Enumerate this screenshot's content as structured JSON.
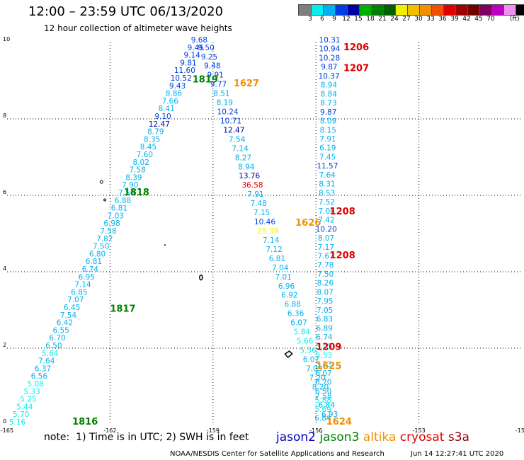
{
  "header": {
    "title": "12:00 – 23:59 UTC 06/13/2020",
    "subtitle": "12 hour collection of altimeter wave heights"
  },
  "colorbar": {
    "colors": [
      "#7f7f7f",
      "#00f0f0",
      "#00b0f0",
      "#0040e0",
      "#0000a0",
      "#00b000",
      "#008000",
      "#006000",
      "#f0f000",
      "#f0c000",
      "#f09000",
      "#f05000",
      "#e00000",
      "#a00000",
      "#700000",
      "#800060",
      "#c000c0",
      "#f090f0",
      "#000000"
    ],
    "labels": [
      "3",
      "6",
      "9",
      "12",
      "15",
      "18",
      "21",
      "24",
      "27",
      "30",
      "33",
      "36",
      "39",
      "42",
      "45",
      "70"
    ],
    "unit": "(ft)"
  },
  "axes": {
    "y_ticks": [
      "10",
      "8",
      "6",
      "4",
      "2",
      "0"
    ],
    "x_ticks": [
      "-165",
      "-162",
      "-159",
      "-156",
      "-153",
      "-150"
    ]
  },
  "tracks": [
    {
      "name": "track-1816",
      "label": "1816",
      "sat": "jason3",
      "label_pos": [
        -163.1,
        0.0
      ],
      "values": [
        "5.16",
        "5.70",
        "5.44",
        "5.25",
        "5.33",
        "5.08",
        "6.56",
        "6.37",
        "7.64",
        "5.64",
        "6.50",
        "6.70",
        "6.55",
        "6.42",
        "7.54",
        "6.45",
        "7.07",
        "6.85",
        "7.14",
        "6.95",
        "6.74",
        "6.81",
        "6.80",
        "7.50",
        "7.82",
        "7.58",
        "6.98",
        "7.03",
        "6.81",
        "6.88",
        "7.56",
        "7.90",
        "8.39",
        "7.58",
        "8.02",
        "7.60",
        "8.45",
        "8.35",
        "8.79",
        "12.47",
        "9.10",
        "8.41",
        "7.66",
        "8.86",
        "9.43",
        "10.52",
        "11.60",
        "9.81",
        "9.14",
        "9.45",
        "9.68"
      ],
      "from": [
        -164.7,
        0.0
      ],
      "to": [
        -159.4,
        10.0
      ]
    },
    {
      "name": "track-1627",
      "label": "1627",
      "sat": "altika",
      "label_pos": [
        -158.1,
        8.9
      ],
      "values": [
        "9.50",
        "9.25",
        "9.48",
        "9.91",
        "9.77",
        "8.51",
        "8.19",
        "10.24",
        "10.71",
        "12.47",
        "7.54",
        "7.14",
        "8.27",
        "8.94",
        "13.76",
        "36.58",
        "7.91",
        "7.48",
        "7.15",
        "10.46",
        "25.39",
        "7.14",
        "7.12",
        "6.81",
        "7.04",
        "7.01",
        "6.96",
        "6.92",
        "6.88",
        "6.36",
        "6.07",
        "5.84",
        "5.66",
        "5.56",
        "6.07",
        "7.09",
        "7.20",
        "8.20",
        "7.58",
        "6.84",
        "6.93"
      ],
      "from": [
        -159.2,
        9.8
      ],
      "to": [
        -155.6,
        0.2
      ]
    },
    {
      "name": "track-1206",
      "label": "1206",
      "sat": "cryosat",
      "label_pos": [
        -155.2,
        9.8
      ],
      "values": [
        "10.31",
        "10.94",
        "10.28",
        "9.87",
        "10.37",
        "8.94",
        "8.84",
        "8.73",
        "9.87",
        "8.09",
        "8.15",
        "7.91",
        "6.19",
        "7.45",
        "11.57",
        "7.64",
        "8.31",
        "8.53",
        "7.52",
        "7.06",
        "7.42",
        "10.20",
        "8.07",
        "7.17",
        "7.67",
        "7.78",
        "7.50",
        "8.26",
        "8.07",
        "7.95",
        "7.05",
        "6.83",
        "6.89",
        "6.74",
        "5.45",
        "5.53",
        "5.53",
        "6.07",
        "6.70",
        "6.50",
        "5.88",
        "5.69",
        "6.84"
      ],
      "from": [
        -155.6,
        10.0
      ],
      "to": [
        -155.8,
        0.1
      ]
    }
  ],
  "time_labels": [
    {
      "text": "1206",
      "color": "#e00000",
      "at": [
        -155.2,
        9.8
      ]
    },
    {
      "text": "1207",
      "color": "#e00000",
      "at": [
        -155.2,
        9.25
      ]
    },
    {
      "text": "1819",
      "color": "#008000",
      "at": [
        -159.6,
        8.95
      ]
    },
    {
      "text": "1627",
      "color": "#f09000",
      "at": [
        -158.4,
        8.85
      ]
    },
    {
      "text": "1818",
      "color": "#008000",
      "at": [
        -161.6,
        6.0
      ]
    },
    {
      "text": "1208",
      "color": "#e00000",
      "at": [
        -155.6,
        5.5
      ]
    },
    {
      "text": "1626",
      "color": "#f09000",
      "at": [
        -156.6,
        5.2
      ]
    },
    {
      "text": "1208",
      "color": "#e00000",
      "at": [
        -155.6,
        4.35
      ]
    },
    {
      "text": "1817",
      "color": "#008000",
      "at": [
        -162.0,
        2.95
      ]
    },
    {
      "text": "1209",
      "color": "#e00000",
      "at": [
        -156.0,
        1.95
      ]
    },
    {
      "text": "1625",
      "color": "#f09000",
      "at": [
        -156.0,
        1.45
      ]
    },
    {
      "text": "1624",
      "color": "#f09000",
      "at": [
        -155.7,
        0.0
      ]
    },
    {
      "text": "1816",
      "color": "#008000",
      "at": [
        -163.1,
        0.0
      ]
    }
  ],
  "legend": {
    "note": "note:  1) Time is in UTC; 2) SWH is in feet",
    "satellites": [
      {
        "name": "jason2",
        "color": "#0000c0"
      },
      {
        "name": "jason3",
        "color": "#008000"
      },
      {
        "name": "altika",
        "color": "#f09000"
      },
      {
        "name": "cryosat",
        "color": "#e00000"
      },
      {
        "name": "s3a",
        "color": "#a00000"
      }
    ]
  },
  "footer": {
    "credit": "NOAA/NESDIS Center for Satellite Applications and Research",
    "stamp": "Jun 14 12:27:41 UTC 2020"
  }
}
